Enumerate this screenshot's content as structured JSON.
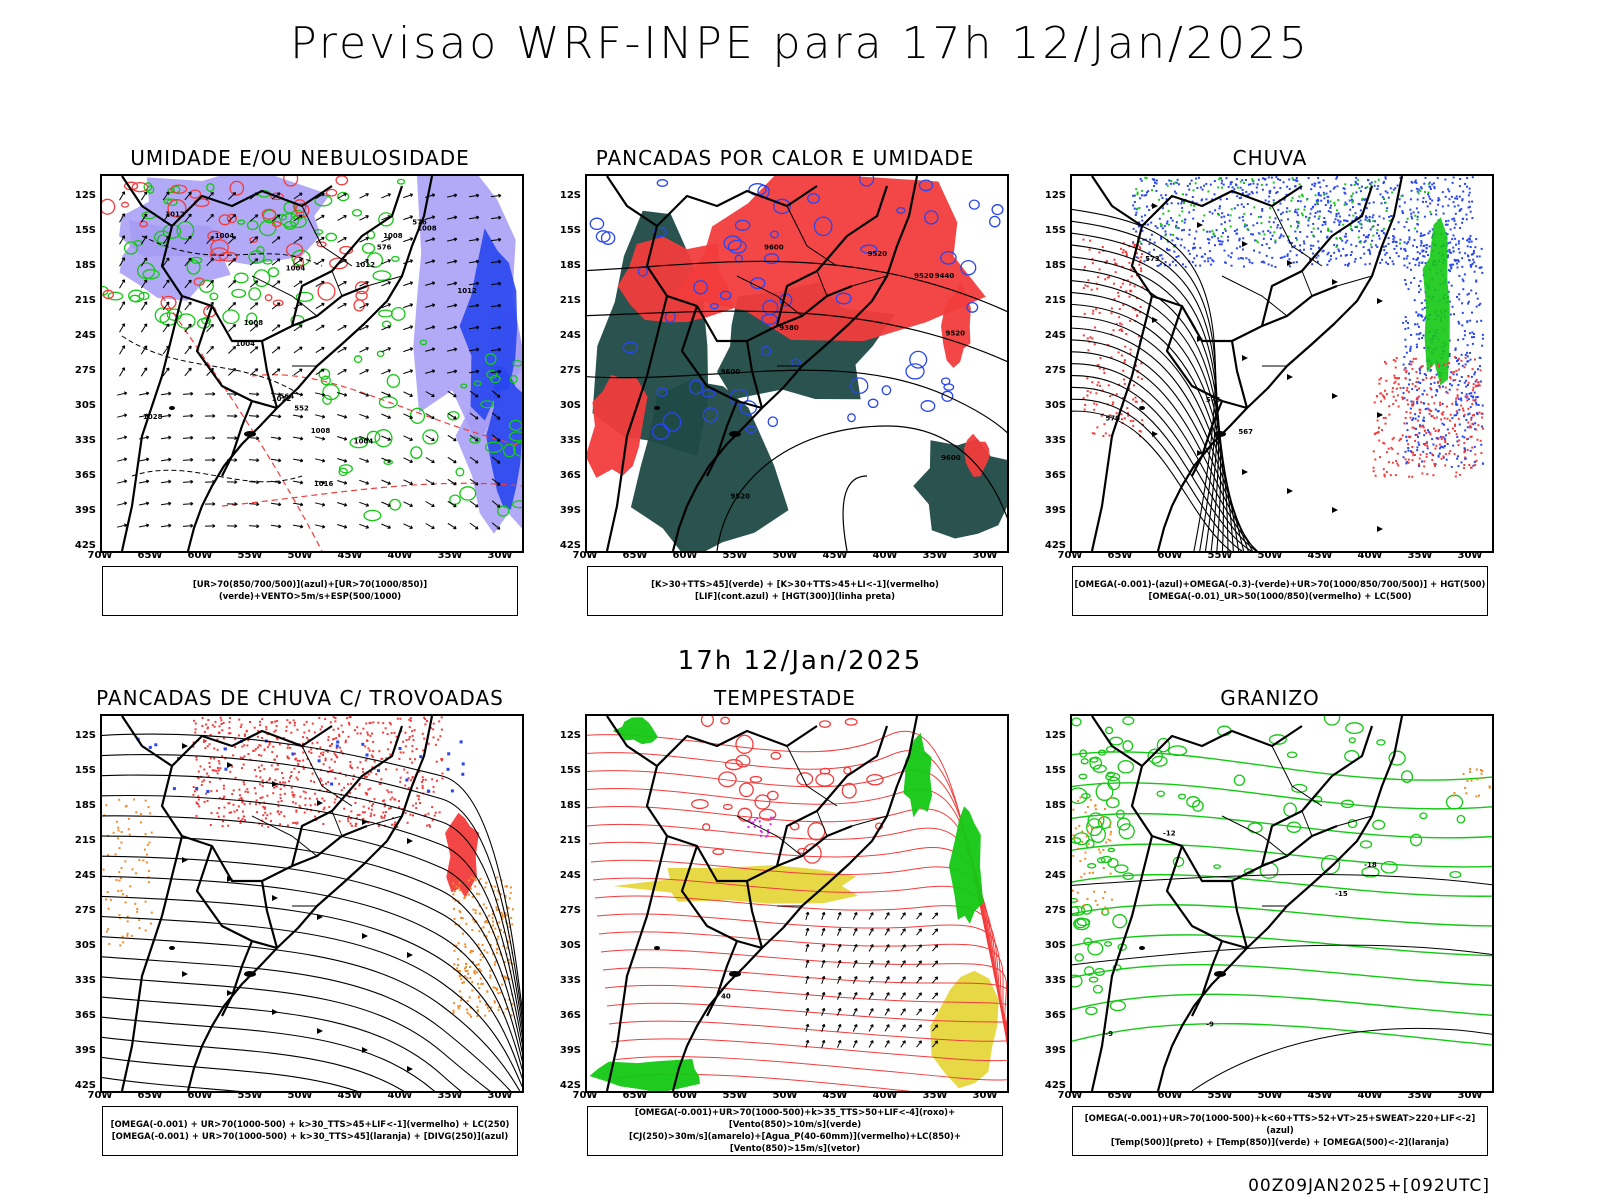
{
  "title": "Previsao WRF-INPE  para 17h 12/Jan/2025",
  "mid_date": "17h 12/Jan/2025",
  "footer_run": "00Z09JAN2025+[092UTC]",
  "axes": {
    "lat_labels": [
      "12S",
      "15S",
      "18S",
      "21S",
      "24S",
      "27S",
      "30S",
      "33S",
      "36S",
      "39S",
      "42S"
    ],
    "lon_labels": [
      "70W",
      "65W",
      "60W",
      "55W",
      "50W",
      "45W",
      "40W",
      "35W",
      "30W"
    ]
  },
  "colors": {
    "red": "#f23c3c",
    "green": "#14c814",
    "blue": "#2846f0",
    "lavender": "#a59bf5",
    "darkteal": "#1f4a46",
    "yellow": "#e6d63c",
    "orange": "#f08c28",
    "magenta": "#dc28dc"
  },
  "panels": [
    {
      "title": "UMIDADE E/OU NEBULOSIDADE",
      "legend": [
        "[UR>70(850/700/500)](azul)+[UR>70(1000/850)](verde)+VENTO>5m/s+ESP(500/1000)"
      ],
      "contour_labels": [
        "1004",
        "1008",
        "1012",
        "1016",
        "1004",
        "1008",
        "1012",
        "1004",
        "1008",
        "1012",
        "576",
        "564",
        "552",
        "576",
        "1012",
        "1008",
        "1028",
        "1004"
      ]
    },
    {
      "title": "PANCADAS POR CALOR E UMIDADE",
      "legend": [
        "[K>30+TTS>45](verde) + [K>30+TTS>45+LI<-1](vermelho)",
        "[LIF](cont.azul) + [HGT(300)](linha preta)"
      ],
      "contour_labels": [
        "9600",
        "9600",
        "9520",
        "9600",
        "9520",
        "9520",
        "9440",
        "9520",
        "9380"
      ]
    },
    {
      "title": "CHUVA",
      "legend": [
        "[OMEGA(-0.001)-(azul)+OMEGA(-0.3)-(verde)+UR>70(1000/850/700/500)] + HGT(500)",
        "[OMEGA(-0.01)_UR>50(1000/850)(vermelho) + LC(500)"
      ],
      "contour_labels": [
        "576",
        "573",
        "570",
        "567"
      ]
    },
    {
      "title": "PANCADAS DE CHUVA C/ TROVOADAS",
      "legend": [
        "[OMEGA(-0.001) + UR>70(1000-500) + k>30_TTS>45+LIF<-1](vermelho) + LC(250)",
        "[OMEGA(-0.001) + UR>70(1000-500) + k>30_TTS>45](laranja) + [DIVG(250)](azul)"
      ],
      "contour_labels": []
    },
    {
      "title": "TEMPESTADE",
      "legend": [
        "[OMEGA(-0.001)+UR>70(1000-500)+k>35_TTS>50+LIF<-4](roxo)+[Vento(850)>10m/s](verde)",
        "[CJ(250)>30m/s](amarelo)+[Agua_P(40-60mm)](vermelho)+LC(850)+[Vento(850)>15m/s](vetor)"
      ],
      "contour_labels": [
        "40"
      ]
    },
    {
      "title": "GRANIZO",
      "legend": [
        "[OMEGA(-0.001)+UR>70(1000-500)+k<60+TTS>52+VT>25+SWEAT>220+LIF<-2](azul)",
        "[Temp(500)](preto) + [Temp(850)](verde) + [OMEGA(500)<-2](laranja)"
      ],
      "contour_labels": [
        "-9",
        "-12",
        "-9",
        "-15",
        "-18"
      ]
    }
  ]
}
